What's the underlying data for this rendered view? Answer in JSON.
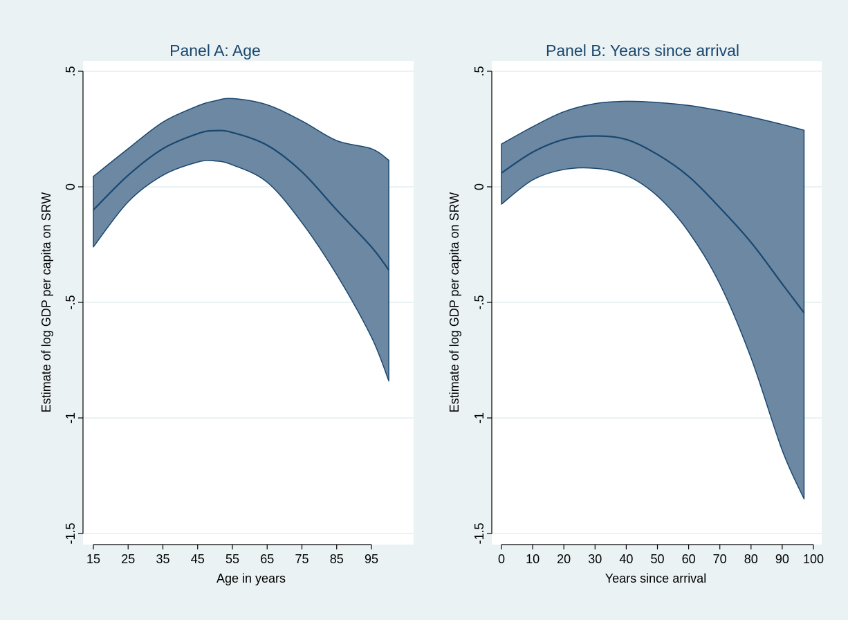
{
  "colors": {
    "background": "#eaf2f3",
    "plot_region": "#ffffff",
    "band_fill": "#6c88a3",
    "band_edge": "#1a476f",
    "fit_line": "#1a476f",
    "title_text": "#1a476f",
    "grid": "#eaf2f3",
    "axis": "#000000"
  },
  "chart_data": [
    {
      "type": "area",
      "title": "Panel A: Age",
      "xlabel": "Age in years",
      "ylabel": "Estimate of log GDP per capita on SRW",
      "xlim": [
        15,
        100
      ],
      "ylim": [
        -1.5,
        0.5
      ],
      "xticks": [
        15,
        25,
        35,
        45,
        55,
        65,
        75,
        85,
        95
      ],
      "xtick_labels": [
        "15",
        "25",
        "35",
        "45",
        "55",
        "65",
        "75",
        "85",
        "95"
      ],
      "yticks": [
        -1.5,
        -1,
        -0.5,
        0,
        0.5
      ],
      "ytick_labels": [
        "-1.5",
        "-1",
        "-.5",
        "0",
        ".5"
      ],
      "grid": true,
      "series": [
        {
          "x": [
            15,
            25,
            35,
            45,
            50,
            55,
            65,
            75,
            85,
            95,
            100
          ],
          "values": [
            -0.1,
            0.05,
            0.165,
            0.23,
            0.243,
            0.235,
            0.18,
            0.065,
            -0.1,
            -0.26,
            -0.36
          ],
          "lower": [
            -0.26,
            -0.065,
            0.05,
            0.107,
            0.112,
            0.095,
            0.02,
            -0.155,
            -0.38,
            -0.65,
            -0.84
          ],
          "upper": [
            0.045,
            0.165,
            0.28,
            0.35,
            0.372,
            0.382,
            0.355,
            0.285,
            0.2,
            0.165,
            0.115
          ]
        }
      ]
    },
    {
      "type": "area",
      "title": "Panel B: Years since arrival",
      "xlabel": "Years since arrival",
      "ylabel": "Estimate of log GDP per capita on SRW",
      "xlim": [
        0,
        97
      ],
      "ylim": [
        -1.5,
        0.5
      ],
      "xticks": [
        0,
        10,
        20,
        30,
        40,
        50,
        60,
        70,
        80,
        90,
        100
      ],
      "xtick_labels": [
        "0",
        "10",
        "20",
        "30",
        "40",
        "50",
        "60",
        "70",
        "80",
        "90",
        "100"
      ],
      "yticks": [
        -1.5,
        -1,
        -0.5,
        0,
        0.5
      ],
      "ytick_labels": [
        "-1.5",
        "-1",
        "-.5",
        "0",
        ".5"
      ],
      "grid": true,
      "series": [
        {
          "x": [
            0,
            10,
            20,
            30,
            40,
            50,
            60,
            70,
            80,
            90,
            97
          ],
          "values": [
            0.06,
            0.15,
            0.205,
            0.22,
            0.205,
            0.14,
            0.045,
            -0.09,
            -0.24,
            -0.42,
            -0.545
          ],
          "lower": [
            -0.075,
            0.03,
            0.075,
            0.08,
            0.05,
            -0.04,
            -0.195,
            -0.42,
            -0.74,
            -1.14,
            -1.35
          ],
          "upper": [
            0.185,
            0.26,
            0.325,
            0.36,
            0.37,
            0.365,
            0.352,
            0.33,
            0.302,
            0.27,
            0.245
          ]
        }
      ]
    }
  ]
}
